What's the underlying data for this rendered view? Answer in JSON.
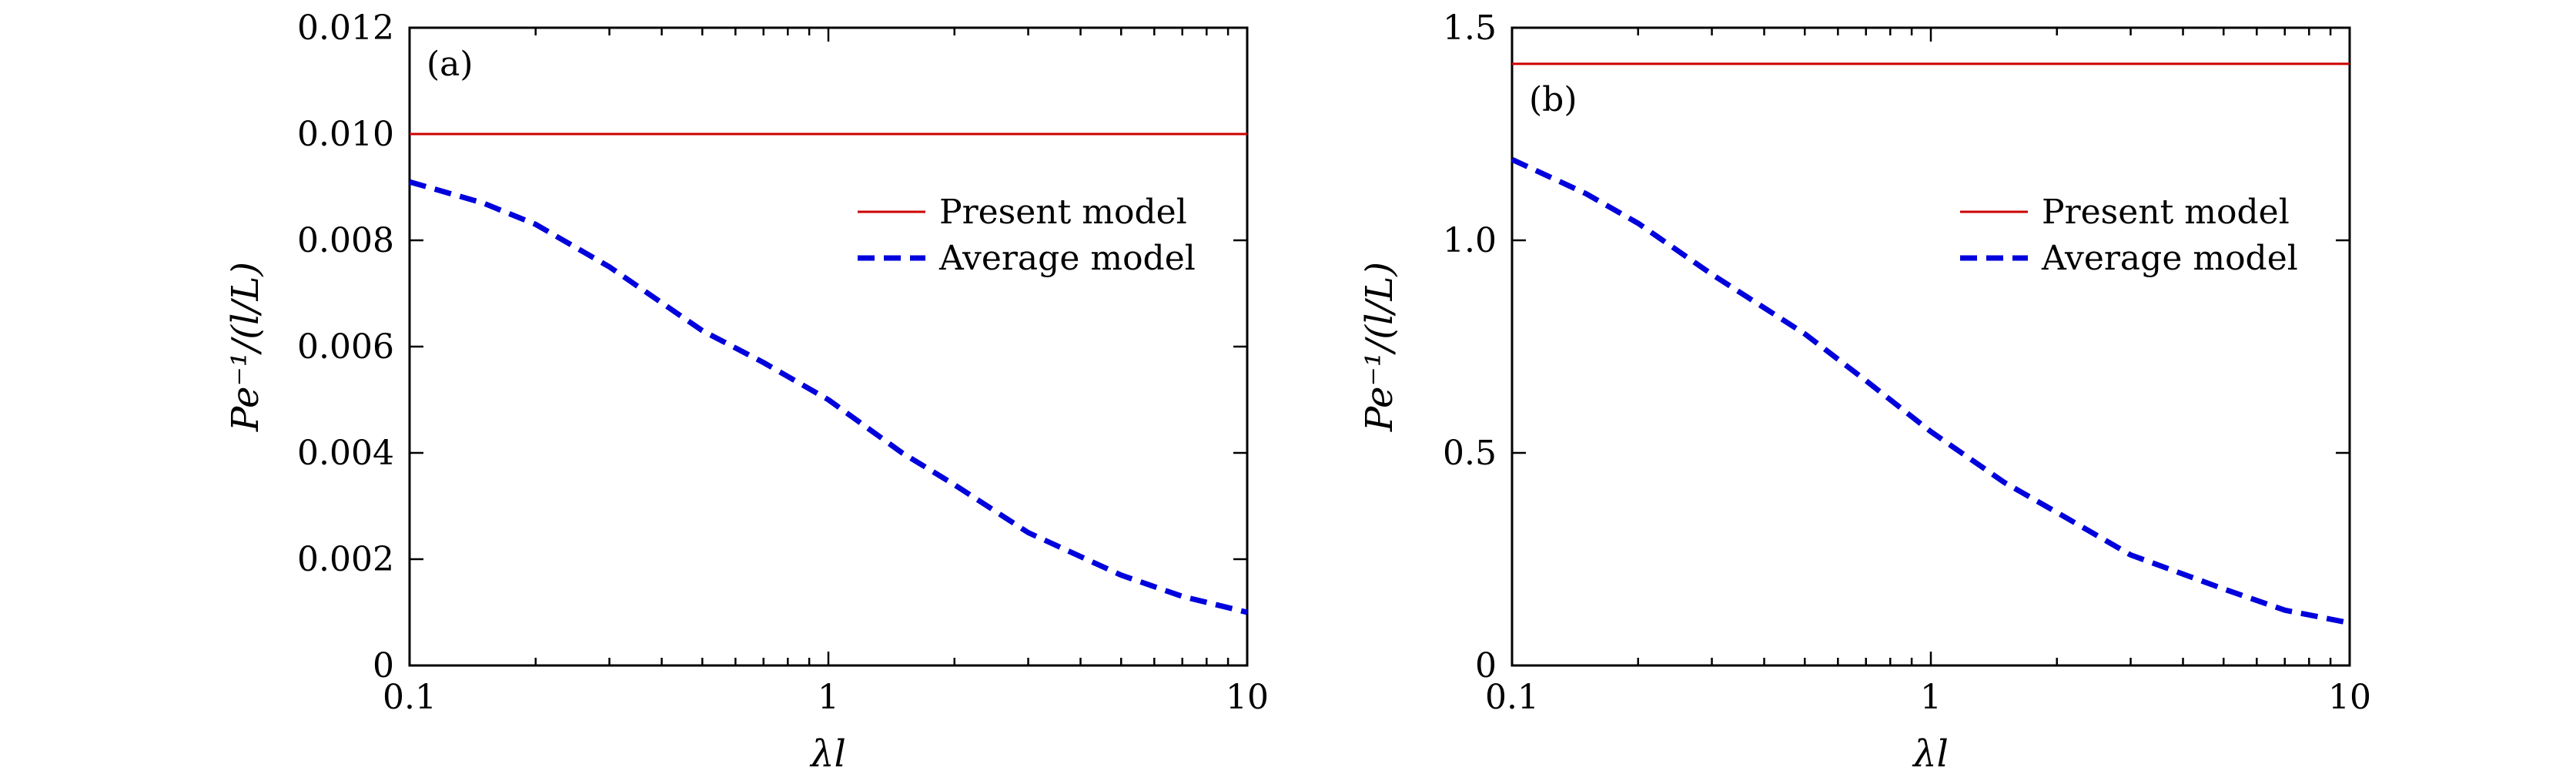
{
  "chart_data": [
    {
      "type": "line",
      "panel_label": "(a)",
      "xscale": "log",
      "xlim": [
        0.1,
        10
      ],
      "xticks": [
        0.1,
        1,
        10
      ],
      "xtick_labels": [
        "0.1",
        "1",
        "10"
      ],
      "ylim": [
        0,
        0.012
      ],
      "yticks": [
        0,
        0.002,
        0.004,
        0.006,
        0.008,
        0.01,
        0.012
      ],
      "ytick_labels": [
        "0",
        "0.002",
        "0.004",
        "0.006",
        "0.008",
        "0.010",
        "0.012"
      ],
      "xlabel": "λl",
      "ylabel": "Pe⁻¹/(l/L)",
      "legend_position": "upper-right",
      "series": [
        {
          "name": "Present model",
          "style": "solid",
          "color": "#cc0000",
          "x": [
            0.1,
            10
          ],
          "values": [
            0.01,
            0.01
          ]
        },
        {
          "name": "Average model",
          "style": "dashed",
          "color": "#0000dd",
          "x": [
            0.1,
            0.15,
            0.2,
            0.3,
            0.5,
            0.7,
            1,
            1.5,
            2,
            3,
            5,
            7,
            10
          ],
          "values": [
            0.0091,
            0.0087,
            0.0083,
            0.0075,
            0.0063,
            0.0057,
            0.005,
            0.004,
            0.0034,
            0.0025,
            0.0017,
            0.0013,
            0.001
          ]
        }
      ]
    },
    {
      "type": "line",
      "panel_label": "(b)",
      "xscale": "log",
      "xlim": [
        0.1,
        10
      ],
      "xticks": [
        0.1,
        1,
        10
      ],
      "xtick_labels": [
        "0.1",
        "1",
        "10"
      ],
      "ylim": [
        0,
        1.5
      ],
      "yticks": [
        0,
        0.5,
        1.0,
        1.5
      ],
      "ytick_labels": [
        "0",
        "0.5",
        "1.0",
        "1.5"
      ],
      "xlabel": "λl",
      "ylabel": "Pe⁻¹/(l/L)",
      "legend_position": "upper-right",
      "series": [
        {
          "name": "Present model",
          "style": "solid",
          "color": "#cc0000",
          "x": [
            0.1,
            10
          ],
          "values": [
            1.415,
            1.415
          ]
        },
        {
          "name": "Average model",
          "style": "dashed",
          "color": "#0000dd",
          "x": [
            0.1,
            0.15,
            0.2,
            0.3,
            0.5,
            0.7,
            1,
            1.5,
            2,
            3,
            5,
            7,
            10
          ],
          "values": [
            1.19,
            1.11,
            1.04,
            0.92,
            0.78,
            0.67,
            0.55,
            0.43,
            0.36,
            0.26,
            0.18,
            0.13,
            0.1
          ]
        }
      ]
    }
  ]
}
